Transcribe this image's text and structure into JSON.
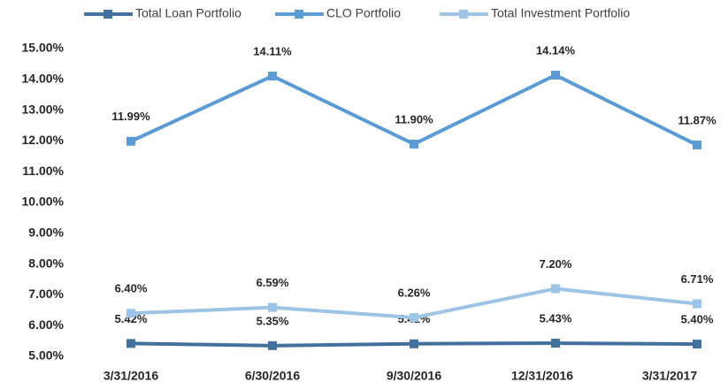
{
  "chart_data": {
    "type": "line",
    "categories": [
      "3/31/2016",
      "6/30/2016",
      "9/30/2016",
      "12/31/2016",
      "3/31/2017"
    ],
    "series": [
      {
        "name": "Total Loan Portfolio",
        "color": "#41719c",
        "values": [
          5.42,
          5.35,
          5.41,
          5.43,
          5.4
        ],
        "value_labels": [
          "5.42%",
          "5.35%",
          "5.41%",
          "5.43%",
          "5.40%"
        ]
      },
      {
        "name": "CLO Portfolio",
        "color": "#5b9bd5",
        "values": [
          11.99,
          14.11,
          11.9,
          14.14,
          11.87
        ],
        "value_labels": [
          "11.99%",
          "14.11%",
          "11.90%",
          "14.14%",
          "11.87%"
        ]
      },
      {
        "name": "Total Investment Portfolio",
        "color": "#9dc3e6",
        "values": [
          6.4,
          6.59,
          6.26,
          7.2,
          6.71
        ],
        "value_labels": [
          "6.40%",
          "6.59%",
          "6.26%",
          "7.20%",
          "6.71%"
        ]
      }
    ],
    "ylim": [
      5,
      15
    ],
    "yticks": [
      {
        "value": 5,
        "label": "5.00%"
      },
      {
        "value": 6,
        "label": "6.00%"
      },
      {
        "value": 7,
        "label": "7.00%"
      },
      {
        "value": 8,
        "label": "8.00%"
      },
      {
        "value": 9,
        "label": "9.00%"
      },
      {
        "value": 10,
        "label": "10.00%"
      },
      {
        "value": 11,
        "label": "11.00%"
      },
      {
        "value": 12,
        "label": "12.00%"
      },
      {
        "value": 13,
        "label": "13.00%"
      },
      {
        "value": 14,
        "label": "14.00%"
      },
      {
        "value": 15,
        "label": "15.00%"
      }
    ],
    "legend": "top"
  }
}
